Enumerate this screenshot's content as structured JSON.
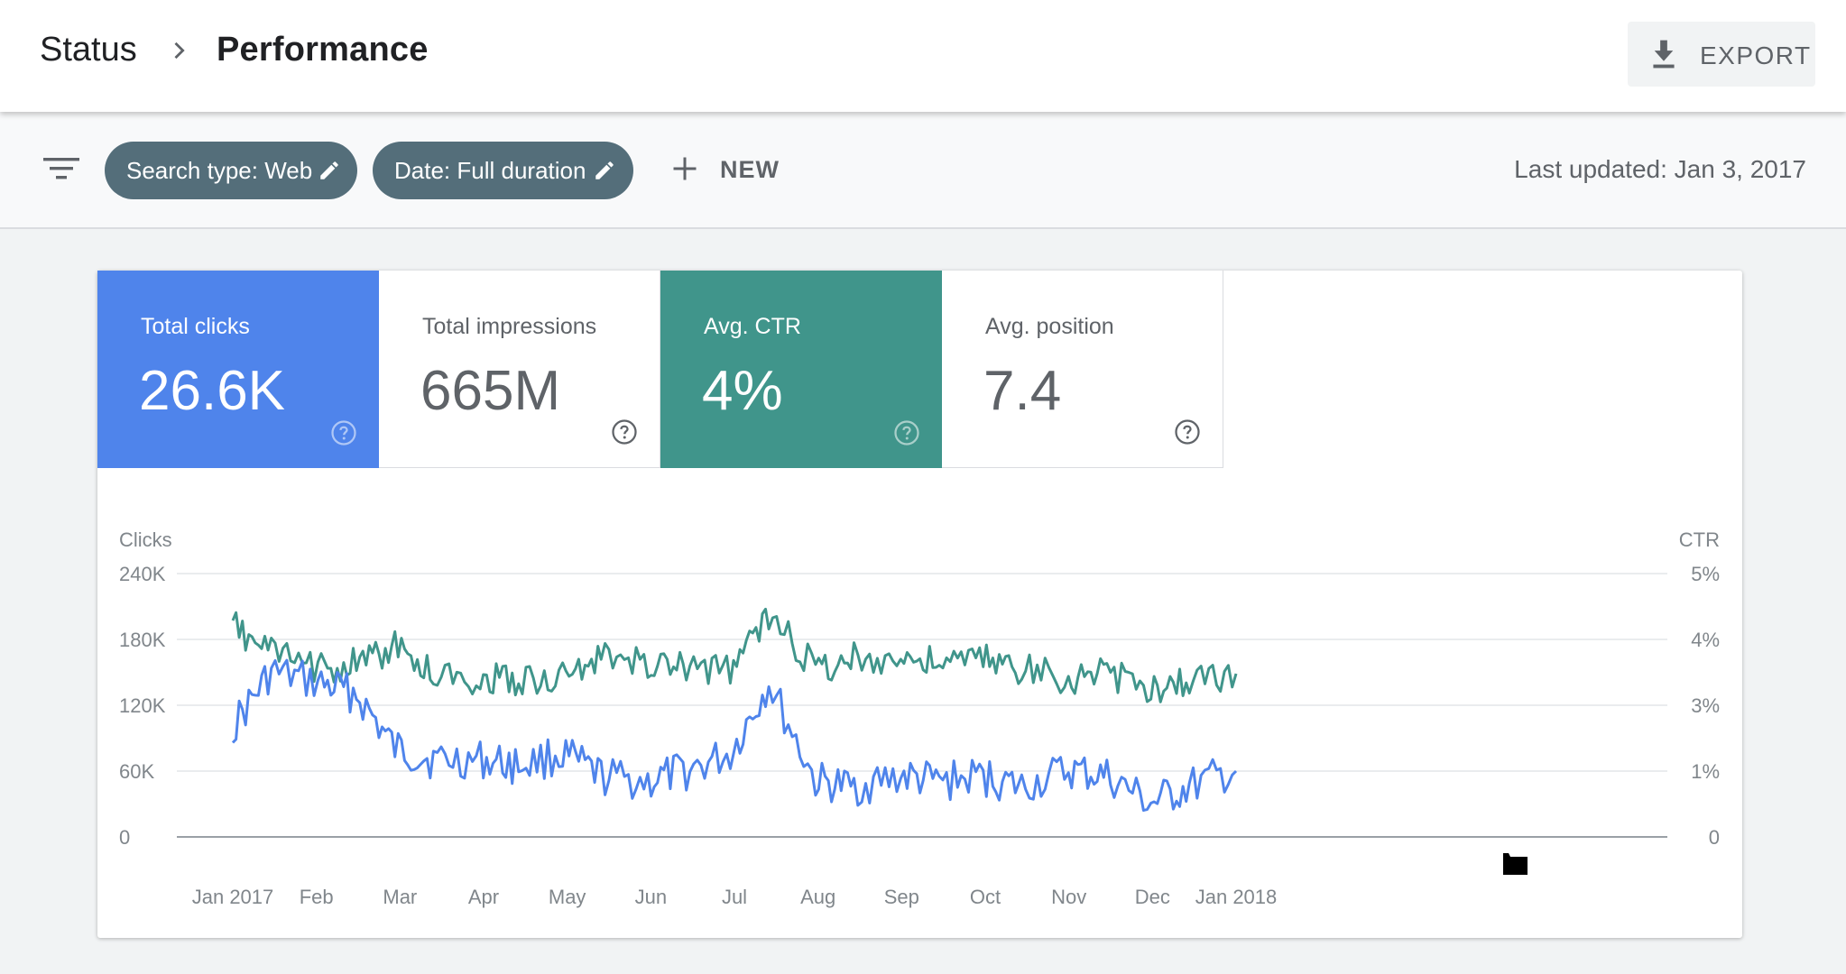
{
  "header": {
    "breadcrumb_parent": "Status",
    "page_title": "Performance",
    "export_label": "EXPORT",
    "icons": {
      "separator": "chevron-right-icon",
      "export": "download-icon"
    }
  },
  "filters": {
    "chips": [
      {
        "label": "Search type: Web",
        "icon": "edit-pencil-icon"
      },
      {
        "label": "Date: Full duration",
        "icon": "edit-pencil-icon"
      }
    ],
    "new_label": "NEW",
    "last_updated": "Last updated: Jan 3, 2017",
    "icons": {
      "filter": "filter-icon",
      "add": "plus-icon"
    }
  },
  "metrics": [
    {
      "label": "Total clicks",
      "value": "26.6K",
      "selected": true,
      "color": "#4f84eb"
    },
    {
      "label": "Total impressions",
      "value": "665M",
      "selected": false
    },
    {
      "label": "Avg. CTR",
      "value": "4%",
      "selected": true,
      "color": "#40958b"
    },
    {
      "label": "Avg. position",
      "value": "7.4",
      "selected": false
    }
  ],
  "chart_data": {
    "type": "line",
    "left_axis_title": "Clicks",
    "right_axis_title": "CTR",
    "left_ticks": [
      "240K",
      "180K",
      "120K",
      "60K",
      "0"
    ],
    "right_ticks": [
      "5%",
      "4%",
      "3%",
      "1%",
      "0"
    ],
    "x_ticks": [
      "Jan 2017",
      "Feb",
      "Mar",
      "Apr",
      "May",
      "Jun",
      "Jul",
      "Aug",
      "Sep",
      "Oct",
      "Nov",
      "Dec",
      "Jan 2018"
    ],
    "ylim_left": [
      0,
      240000
    ],
    "ylim_right": [
      0,
      5
    ],
    "grid": true,
    "series": [
      {
        "name": "Clicks",
        "axis": "left",
        "color": "#4f84eb",
        "x": [
          "2017-01-01",
          "2017-01-15",
          "2017-02-01",
          "2017-02-15",
          "2017-03-01",
          "2017-03-15",
          "2017-04-01",
          "2017-04-15",
          "2017-05-01",
          "2017-05-15",
          "2017-06-01",
          "2017-06-15",
          "2017-07-01",
          "2017-07-15",
          "2017-08-01",
          "2017-08-15",
          "2017-09-01",
          "2017-09-15",
          "2017-10-01",
          "2017-10-15",
          "2017-11-01",
          "2017-11-15",
          "2017-12-01",
          "2017-12-15",
          "2018-01-01"
        ],
        "values": [
          100000,
          150000,
          140000,
          130000,
          80000,
          70000,
          70000,
          65000,
          75000,
          55000,
          50000,
          60000,
          75000,
          140000,
          50000,
          45000,
          55000,
          50000,
          55000,
          45000,
          60000,
          55000,
          30000,
          45000,
          60000
        ]
      },
      {
        "name": "CTR",
        "axis": "right",
        "color": "#40958b",
        "x": [
          "2017-01-01",
          "2017-01-15",
          "2017-02-01",
          "2017-02-15",
          "2017-03-01",
          "2017-03-15",
          "2017-04-01",
          "2017-04-15",
          "2017-05-01",
          "2017-05-15",
          "2017-06-01",
          "2017-06-15",
          "2017-07-01",
          "2017-07-15",
          "2017-08-01",
          "2017-08-15",
          "2017-09-01",
          "2017-09-15",
          "2017-10-01",
          "2017-10-15",
          "2017-11-01",
          "2017-11-15",
          "2017-12-01",
          "2017-12-15",
          "2018-01-01"
        ],
        "values": [
          4.0,
          3.5,
          3.2,
          3.3,
          3.6,
          3.1,
          3.0,
          3.0,
          3.0,
          3.4,
          3.3,
          3.2,
          3.2,
          4.2,
          3.2,
          3.4,
          3.4,
          3.3,
          3.4,
          3.2,
          3.0,
          3.1,
          2.8,
          3.0,
          3.1
        ]
      }
    ]
  }
}
